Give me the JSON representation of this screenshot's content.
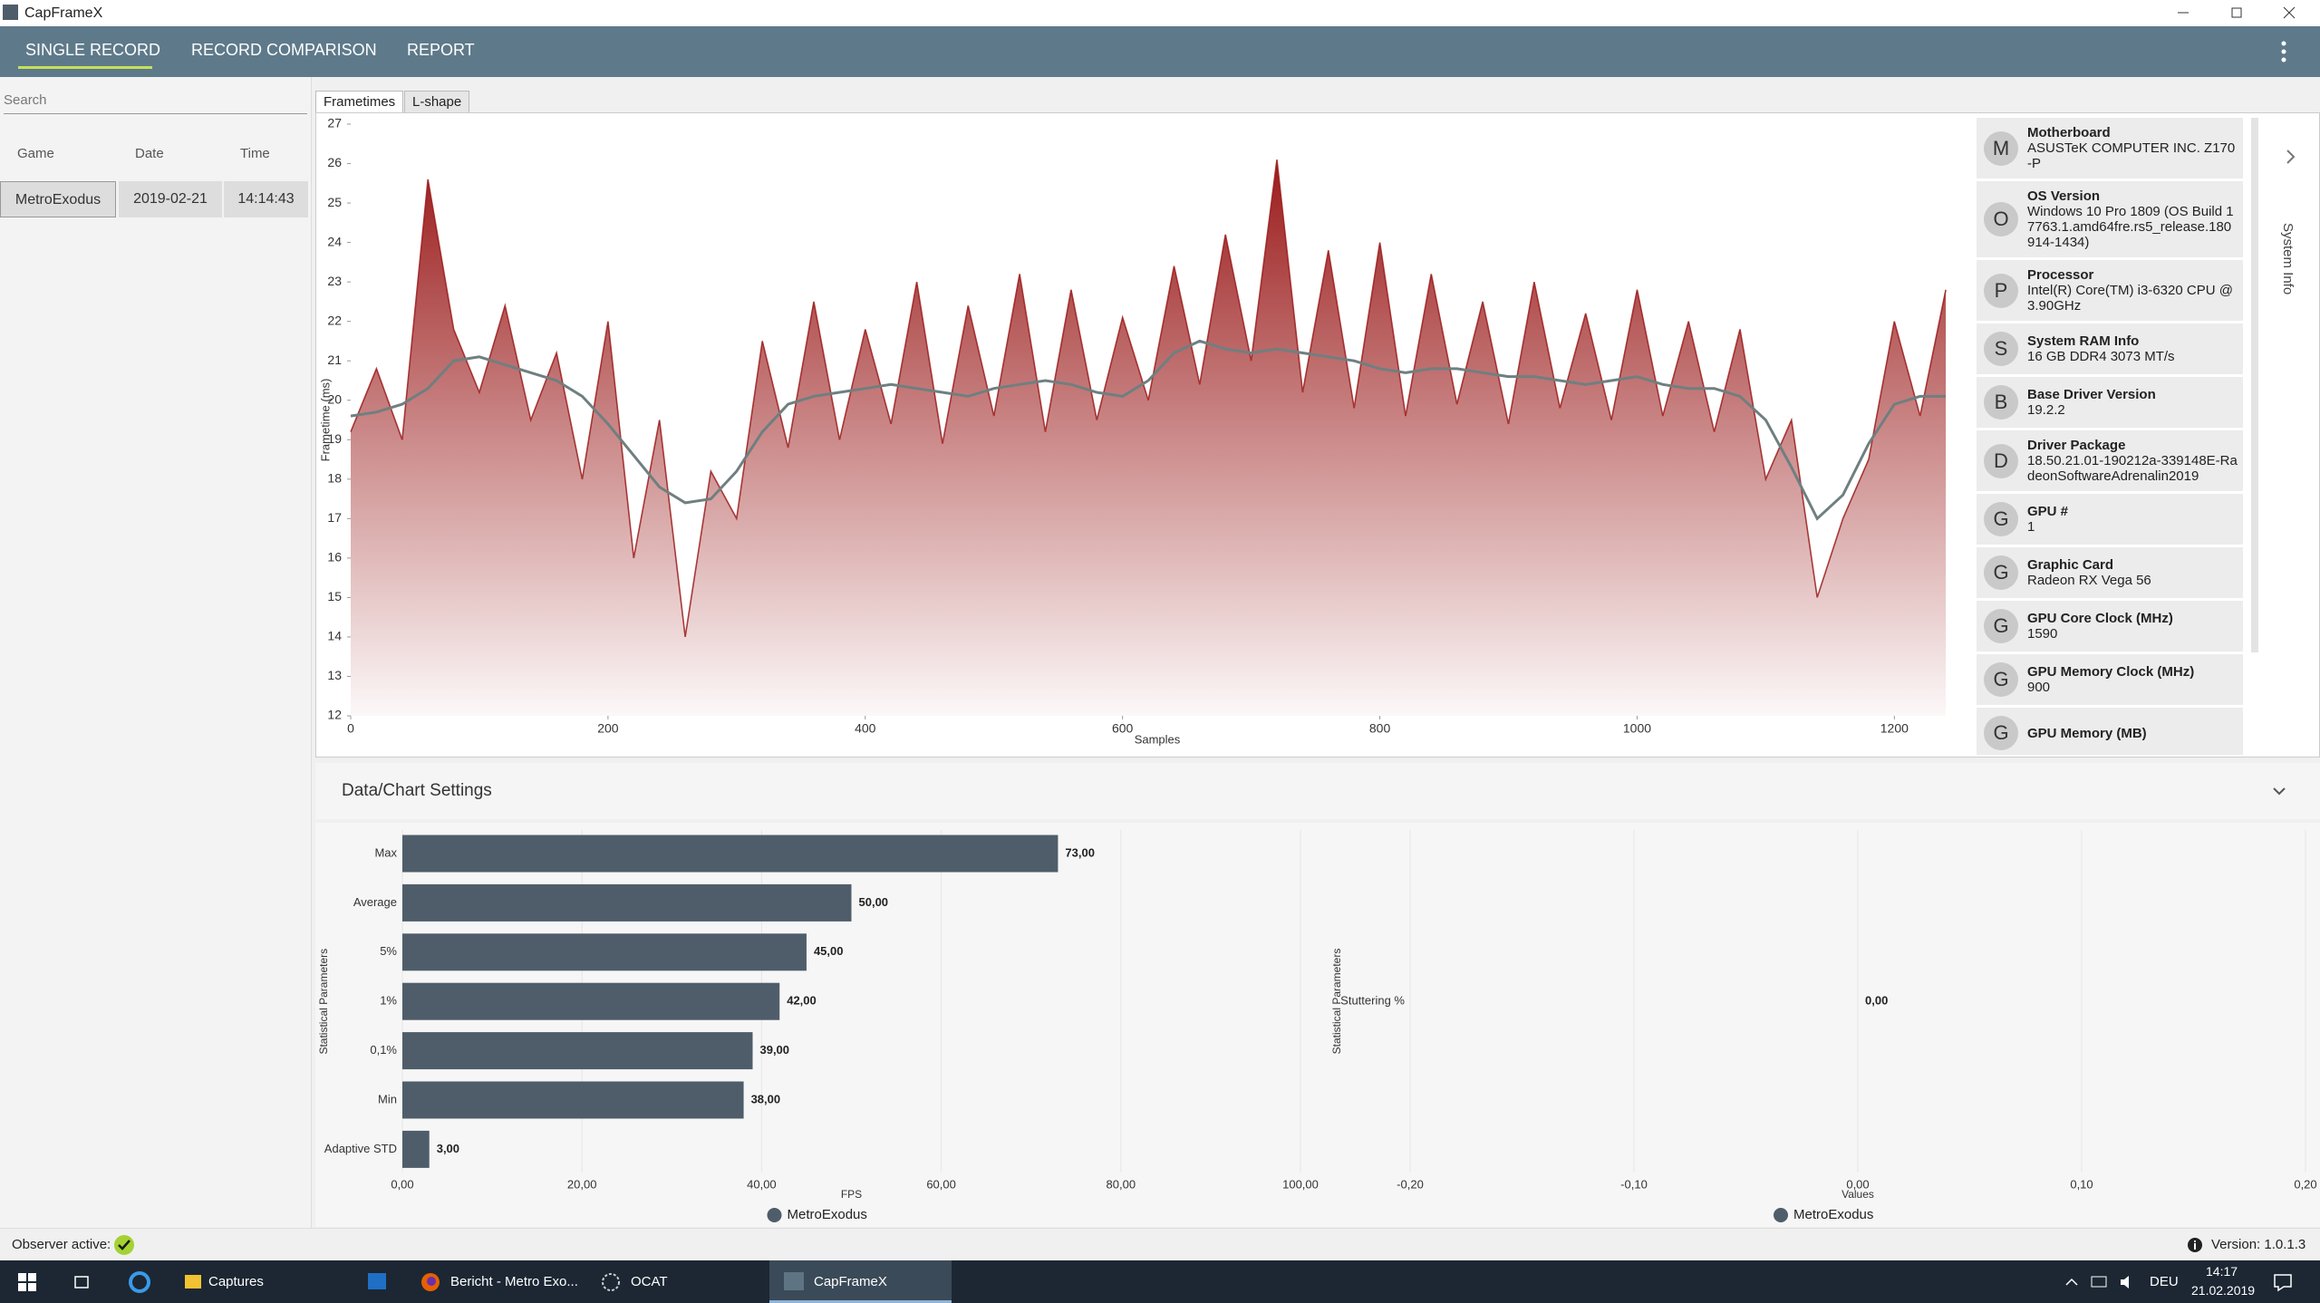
{
  "window": {
    "title": "CapFrameX"
  },
  "nav": [
    "SINGLE RECORD",
    "RECORD COMPARISON",
    "REPORT"
  ],
  "sidebar": {
    "search_placeholder": "Search",
    "columns": [
      "Game",
      "Date",
      "Time"
    ],
    "rows": [
      [
        "MetroExodus",
        "2019-02-21",
        "14:14:43"
      ]
    ]
  },
  "tabs": [
    "Frametimes",
    "L-shape"
  ],
  "system_info": {
    "title": "System Info",
    "items": [
      {
        "icon": "M",
        "label": "Motherboard",
        "value": "ASUSTeK COMPUTER INC. Z170-P"
      },
      {
        "icon": "O",
        "label": "OS Version",
        "value": "Windows 10 Pro 1809 (OS Build 17763.1.amd64fre.rs5_release.180914-1434)"
      },
      {
        "icon": "P",
        "label": "Processor",
        "value": "Intel(R) Core(TM) i3-6320 CPU @ 3.90GHz"
      },
      {
        "icon": "S",
        "label": "System RAM Info",
        "value": "16 GB DDR4 3073 MT/s"
      },
      {
        "icon": "B",
        "label": "Base Driver Version",
        "value": "19.2.2"
      },
      {
        "icon": "D",
        "label": "Driver Package",
        "value": "18.50.21.01-190212a-339148E-RadeonSoftwareAdrenalin2019"
      },
      {
        "icon": "G",
        "label": "GPU #",
        "value": "1"
      },
      {
        "icon": "G",
        "label": "Graphic Card",
        "value": "Radeon RX Vega 56"
      },
      {
        "icon": "G",
        "label": "GPU Core Clock (MHz)",
        "value": "1590"
      },
      {
        "icon": "G",
        "label": "GPU Memory Clock (MHz)",
        "value": "900"
      },
      {
        "icon": "G",
        "label": "GPU Memory (MB)"
      }
    ]
  },
  "settings_title": "Data/Chart Settings",
  "chart_data": [
    {
      "type": "line",
      "x_label": "Samples",
      "y_label": "Frametime (ms)",
      "x": [
        0,
        20,
        40,
        60,
        80,
        100,
        120,
        140,
        160,
        180,
        200,
        220,
        240,
        260,
        280,
        300,
        320,
        340,
        360,
        380,
        400,
        420,
        440,
        460,
        480,
        500,
        520,
        540,
        560,
        580,
        600,
        620,
        640,
        660,
        680,
        700,
        720,
        740,
        760,
        780,
        800,
        820,
        840,
        860,
        880,
        900,
        920,
        940,
        960,
        980,
        1000,
        1020,
        1040,
        1060,
        1080,
        1100,
        1120,
        1140,
        1160,
        1180,
        1200,
        1220,
        1240
      ],
      "series": [
        {
          "color": "#9b1c1c",
          "fill": true,
          "values": [
            19.2,
            20.8,
            19.0,
            25.6,
            21.8,
            20.2,
            22.4,
            19.5,
            21.2,
            18.0,
            22.0,
            16.0,
            19.5,
            14.0,
            18.2,
            17.0,
            21.5,
            18.8,
            22.5,
            19.0,
            21.8,
            19.4,
            23.0,
            18.9,
            22.4,
            19.6,
            23.2,
            19.2,
            22.8,
            19.5,
            22.1,
            20.0,
            23.4,
            20.4,
            24.2,
            21.0,
            26.1,
            20.2,
            23.8,
            19.8,
            24.0,
            19.6,
            23.2,
            19.9,
            22.5,
            19.4,
            23.0,
            19.8,
            22.2,
            19.5,
            22.8,
            19.6,
            22.0,
            19.2,
            21.8,
            18.0,
            19.5,
            15.0,
            17.0,
            18.5,
            22.0,
            19.6,
            22.8
          ]
        },
        {
          "color": "#6f7f80",
          "fill": false,
          "values": [
            19.6,
            19.7,
            19.9,
            20.3,
            21.0,
            21.1,
            20.9,
            20.7,
            20.5,
            20.1,
            19.4,
            18.6,
            17.8,
            17.4,
            17.5,
            18.2,
            19.2,
            19.9,
            20.1,
            20.2,
            20.3,
            20.4,
            20.3,
            20.2,
            20.1,
            20.3,
            20.4,
            20.5,
            20.4,
            20.2,
            20.1,
            20.5,
            21.2,
            21.5,
            21.3,
            21.2,
            21.3,
            21.2,
            21.1,
            21.0,
            20.8,
            20.7,
            20.8,
            20.8,
            20.7,
            20.6,
            20.6,
            20.5,
            20.4,
            20.5,
            20.6,
            20.4,
            20.3,
            20.3,
            20.1,
            19.5,
            18.3,
            17.0,
            17.6,
            18.9,
            19.9,
            20.1,
            20.1
          ]
        }
      ],
      "xlim": [
        0,
        1254
      ],
      "ylim": [
        12,
        27
      ],
      "xticks": [
        0,
        200,
        400,
        600,
        800,
        1000,
        1200
      ],
      "yticks": [
        12,
        13,
        14,
        15,
        16,
        17,
        18,
        19,
        20,
        21,
        22,
        23,
        24,
        25,
        26,
        27
      ]
    },
    {
      "type": "bar",
      "orientation": "horizontal",
      "x_label": "FPS",
      "y_label": "Statistical Parameters",
      "categories": [
        "Max",
        "Average",
        "5%",
        "1%",
        "0,1%",
        "Min",
        "Adaptive STD"
      ],
      "series": [
        {
          "name": "MetroExodus",
          "color": "#4f5d6a",
          "values": [
            73,
            50,
            45,
            42,
            39,
            38,
            3
          ],
          "value_labels": [
            "73,00",
            "50,00",
            "45,00",
            "42,00",
            "39,00",
            "38,00",
            "3,00"
          ]
        }
      ],
      "xlim": [
        0,
        100
      ],
      "xticks": [
        {
          "value": 0,
          "label": "0,00"
        },
        {
          "value": 20,
          "label": "20,00"
        },
        {
          "value": 40,
          "label": "40,00"
        },
        {
          "value": 60,
          "label": "60,00"
        },
        {
          "value": 80,
          "label": "80,00"
        },
        {
          "value": 100,
          "label": "100,00"
        }
      ],
      "grid": true
    },
    {
      "type": "bar",
      "orientation": "horizontal",
      "x_label": "Values",
      "y_label": "Statistical Parameters",
      "categories": [
        "Stuttering %"
      ],
      "series": [
        {
          "name": "MetroExodus",
          "color": "#4f5d6a",
          "values": [
            0
          ],
          "value_labels": [
            "0,00"
          ]
        }
      ],
      "xlim": [
        -0.2,
        0.2
      ],
      "xticks": [
        {
          "value": -0.2,
          "label": "-0,20"
        },
        {
          "value": -0.1,
          "label": "-0,10"
        },
        {
          "value": 0,
          "label": "0,00"
        },
        {
          "value": 0.1,
          "label": "0,10"
        },
        {
          "value": 0.2,
          "label": "0,20"
        }
      ],
      "grid": true
    }
  ],
  "status": {
    "observer": "Observer active:",
    "version": "Version: 1.0.1.3"
  },
  "taskbar": {
    "items": [
      "Captures",
      "Bericht - Metro Exo...",
      "OCAT",
      "CapFrameX"
    ],
    "language": "DEU",
    "time": "14:17",
    "date": "21.02.2019"
  }
}
